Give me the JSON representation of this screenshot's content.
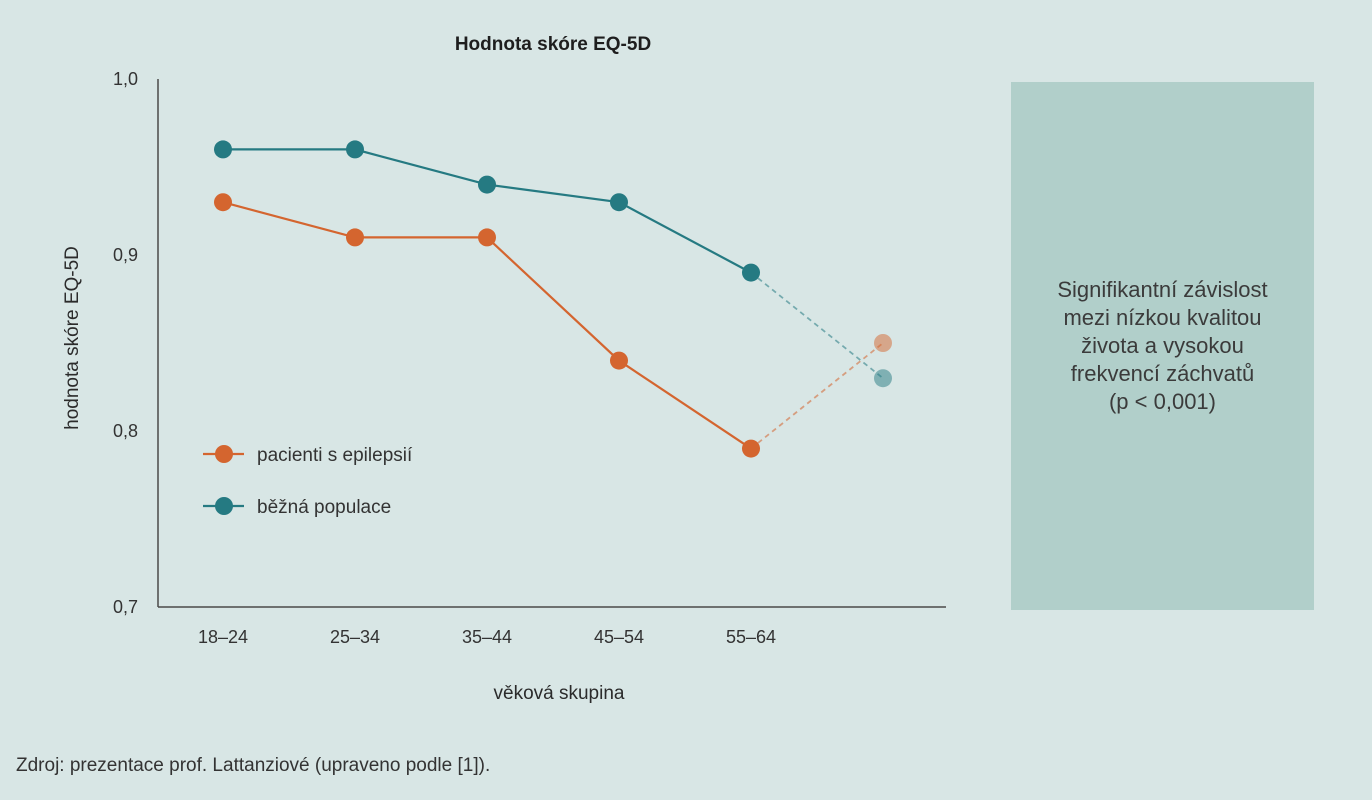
{
  "chart_data": {
    "type": "line",
    "title": "Hodnota skóre EQ-5D",
    "xlabel": "věková skupina",
    "ylabel": "hodnota skóre EQ-5D",
    "ylim": [
      0.7,
      1.0
    ],
    "yticks": [
      "1,0",
      "0,9",
      "0,8",
      "0,7"
    ],
    "categories": [
      "18–24",
      "25–34",
      "35–44",
      "45–54",
      "55–64",
      ""
    ],
    "series": [
      {
        "name": "pacienti s epilepsií",
        "color": "#d4652f",
        "values": [
          0.93,
          0.91,
          0.91,
          0.84,
          0.79,
          0.85
        ],
        "dashed_last_segment": true
      },
      {
        "name": "běžná populace",
        "color": "#257a82",
        "values": [
          0.96,
          0.96,
          0.94,
          0.93,
          0.89,
          0.83
        ],
        "dashed_last_segment": true
      }
    ],
    "legend_position": "bottom-left",
    "grid": false
  },
  "note": "Signifikantní závislost\nmezi nízkou kvalitou\nživota a vysokou\nfrekvencí záchvatů\n(p < 0,001)",
  "source": "Zdroj: prezentace prof. Lattanziové (upraveno podle [1])."
}
